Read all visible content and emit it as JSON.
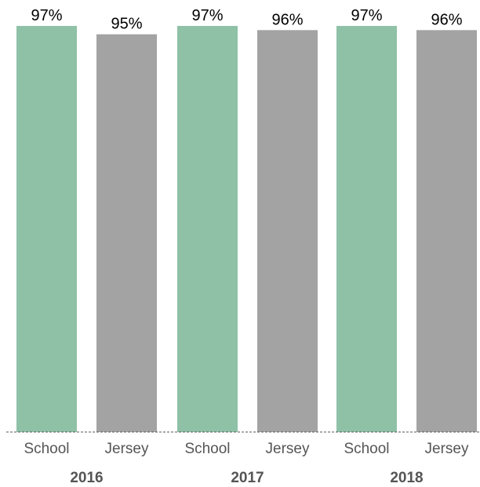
{
  "chart_data": {
    "type": "bar",
    "title": "",
    "xlabel": "",
    "ylabel": "",
    "ylim": [
      0,
      100
    ],
    "grid": false,
    "legend": "none",
    "groups": [
      {
        "label": "2016",
        "bars": [
          {
            "category": "School",
            "value": 97,
            "label": "97%",
            "color": "#8fc1a7"
          },
          {
            "category": "Jersey",
            "value": 95,
            "label": "95%",
            "color": "#a3a3a3"
          }
        ]
      },
      {
        "label": "2017",
        "bars": [
          {
            "category": "School",
            "value": 97,
            "label": "97%",
            "color": "#8fc1a7"
          },
          {
            "category": "Jersey",
            "value": 96,
            "label": "96%",
            "color": "#a3a3a3"
          }
        ]
      },
      {
        "label": "2018",
        "bars": [
          {
            "category": "School",
            "value": 97,
            "label": "97%",
            "color": "#8fc1a7"
          },
          {
            "category": "Jersey",
            "value": 96,
            "label": "96%",
            "color": "#a3a3a3"
          }
        ]
      }
    ]
  }
}
